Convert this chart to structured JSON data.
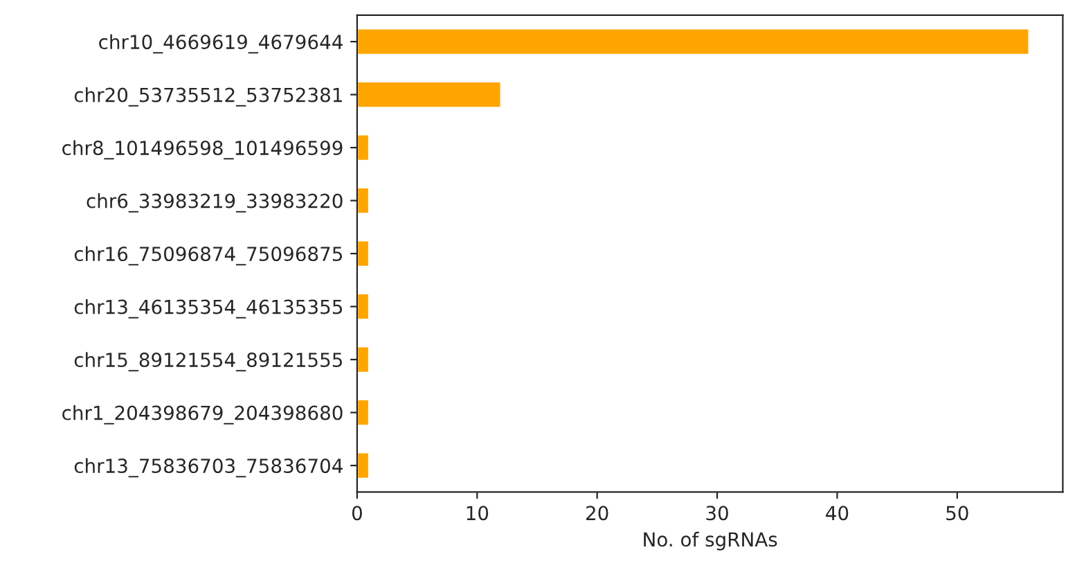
{
  "chart_data": {
    "type": "bar",
    "orientation": "horizontal",
    "xlabel": "No. of sgRNAs",
    "categories": [
      "chr10_4669619_4679644",
      "chr20_53735512_53752381",
      "chr8_101496598_101496599",
      "chr6_33983219_33983220",
      "chr16_75096874_75096875",
      "chr13_46135354_46135355",
      "chr15_89121554_89121555",
      "chr1_204398679_204398680",
      "chr13_75836703_75836704"
    ],
    "values": [
      56,
      12,
      1,
      1,
      1,
      1,
      1,
      1,
      1
    ],
    "color": "#ffa500",
    "xlim": [
      0,
      58.8
    ],
    "xticks": [
      0,
      10,
      20,
      30,
      40,
      50
    ],
    "grid": false,
    "legend": false
  }
}
